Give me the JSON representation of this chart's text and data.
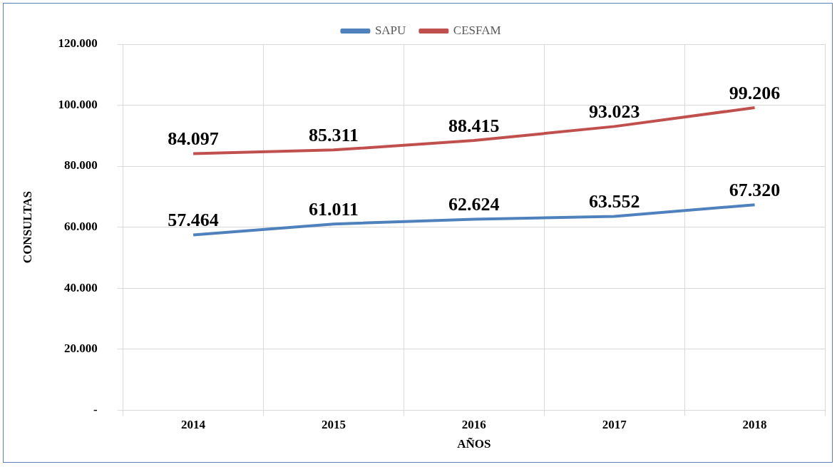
{
  "chart_data": {
    "type": "line",
    "xlabel": "AÑOS",
    "ylabel": "CONSULTAS",
    "categories": [
      "2014",
      "2015",
      "2016",
      "2017",
      "2018"
    ],
    "series": [
      {
        "name": "SAPU",
        "color": "#4f81bd",
        "values": [
          57464,
          61011,
          62624,
          63552,
          67320
        ],
        "value_labels": [
          "57.464",
          "61.011",
          "62.624",
          "63.552",
          "67.320"
        ]
      },
      {
        "name": "CESFAM",
        "color": "#c0504d",
        "values": [
          84097,
          85311,
          88415,
          93023,
          99206
        ],
        "value_labels": [
          "84.097",
          "85.311",
          "88.415",
          "93.023",
          "99.206"
        ]
      }
    ],
    "ylim": [
      0,
      120000
    ],
    "yticks": [
      {
        "value": 0,
        "label": "-"
      },
      {
        "value": 20000,
        "label": "20.000"
      },
      {
        "value": 40000,
        "label": "40.000"
      },
      {
        "value": 60000,
        "label": "60.000"
      },
      {
        "value": 80000,
        "label": "80.000"
      },
      {
        "value": 100000,
        "label": "100.000"
      },
      {
        "value": 120000,
        "label": "120.000"
      }
    ],
    "grid": true,
    "legend": "top",
    "marker": "none",
    "line_style": "solid"
  }
}
